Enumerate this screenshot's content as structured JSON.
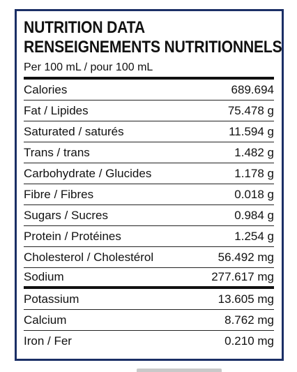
{
  "heading": {
    "line1": "NUTRITION DATA",
    "line2": "RENSEIGNEMENTS NUTRITIONNELS"
  },
  "serving": "Per 100 mL / pour 100 mL",
  "rows": [
    {
      "label": "Calories",
      "value": "689.694"
    },
    {
      "label": "Fat / Lipides",
      "value": "75.478 g"
    },
    {
      "label": "Saturated / saturés",
      "value": "11.594 g"
    },
    {
      "label": "Trans / trans",
      "value": "1.482 g"
    },
    {
      "label": "Carbohydrate / Glucides",
      "value": "1.178 g"
    },
    {
      "label": "Fibre / Fibres",
      "value": "0.018 g"
    },
    {
      "label": "Sugars / Sucres",
      "value": "0.984 g"
    },
    {
      "label": "Protein / Protéines",
      "value": "1.254 g"
    },
    {
      "label": "Cholesterol / Cholestérol",
      "value": "56.492 mg"
    },
    {
      "label": "Sodium",
      "value": "277.617 mg"
    },
    {
      "label": "Potassium",
      "value": "13.605 mg"
    },
    {
      "label": "Calcium",
      "value": "8.762 mg"
    },
    {
      "label": "Iron / Fer",
      "value": "0.210 mg"
    }
  ],
  "colors": {
    "border": "#1b2f66",
    "text": "#111111"
  }
}
